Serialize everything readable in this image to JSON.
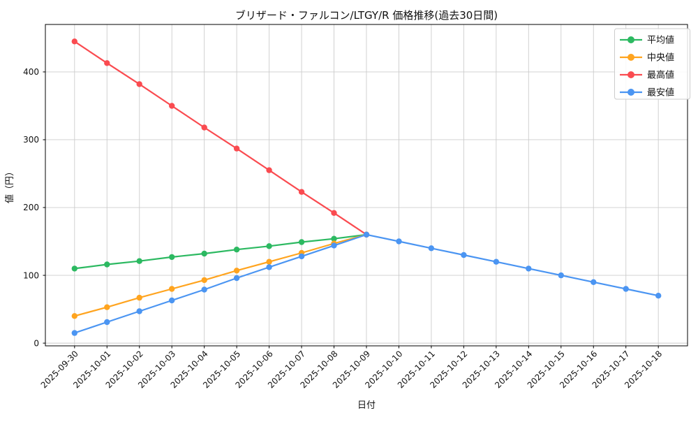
{
  "chart_data": {
    "type": "line",
    "title": "ブリザード・ファルコン/LTGY/R 価格推移(過去30日間)",
    "xlabel": "日付",
    "ylabel": "値（円）",
    "grid": true,
    "legend_position": "upper right",
    "ylim": [
      -4,
      470
    ],
    "yticks": [
      0,
      100,
      200,
      300,
      400
    ],
    "categories": [
      "2025-09-30",
      "2025-10-01",
      "2025-10-02",
      "2025-10-03",
      "2025-10-04",
      "2025-10-05",
      "2025-10-06",
      "2025-10-07",
      "2025-10-08",
      "2025-10-09",
      "2025-10-10",
      "2025-10-11",
      "2025-10-12",
      "2025-10-13",
      "2025-10-14",
      "2025-10-15",
      "2025-10-16",
      "2025-10-17",
      "2025-10-18"
    ],
    "series": [
      {
        "name": "平均値",
        "color": "#2cb961",
        "values": [
          110,
          116,
          121,
          127,
          132,
          138,
          143,
          149,
          154,
          160,
          null,
          null,
          null,
          null,
          null,
          null,
          null,
          null,
          null
        ]
      },
      {
        "name": "中央値",
        "color": "#ffa41f",
        "values": [
          40,
          53,
          67,
          80,
          93,
          107,
          120,
          133,
          147,
          160,
          null,
          null,
          null,
          null,
          null,
          null,
          null,
          null,
          null
        ]
      },
      {
        "name": "最高値",
        "color": "#fa4b50",
        "values": [
          445,
          413,
          382,
          350,
          318,
          287,
          255,
          223,
          192,
          160,
          null,
          null,
          null,
          null,
          null,
          null,
          null,
          null,
          null
        ]
      },
      {
        "name": "最安値",
        "color": "#4b95f2",
        "values": [
          15,
          31,
          47,
          63,
          79,
          96,
          112,
          128,
          144,
          160,
          150,
          140,
          130,
          120,
          110,
          100,
          90,
          80,
          70
        ]
      }
    ]
  }
}
